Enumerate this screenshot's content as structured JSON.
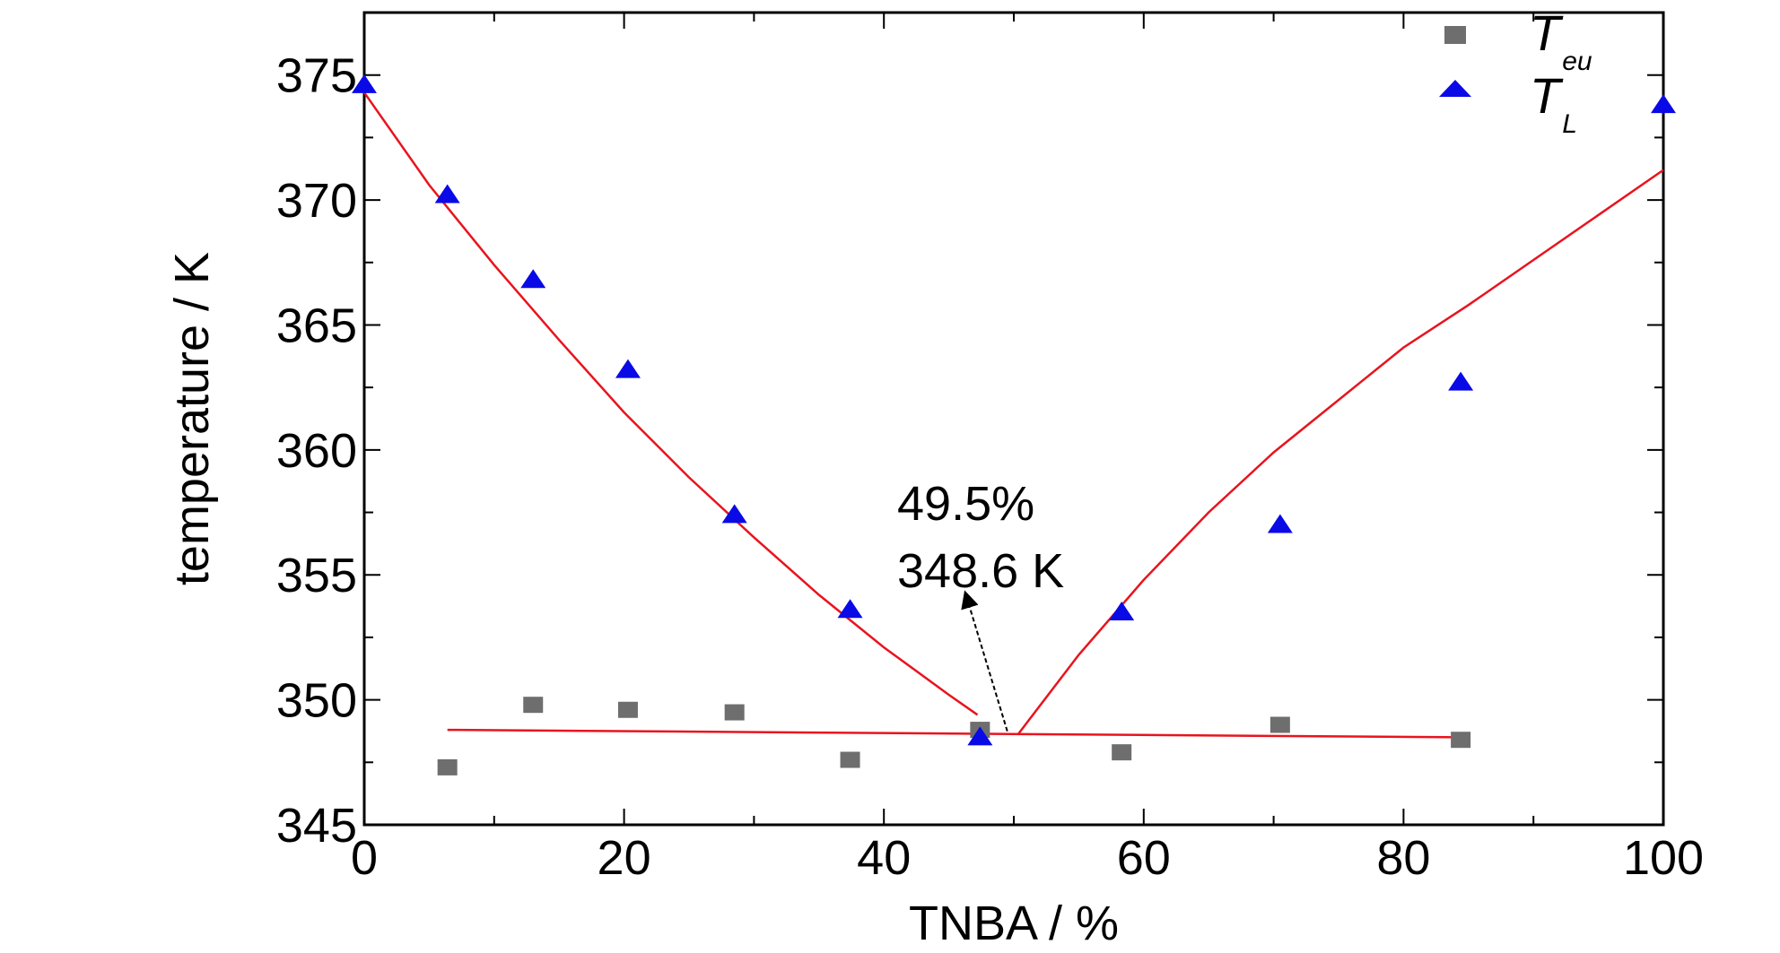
{
  "chart_data": {
    "type": "scatter",
    "xlabel": "TNBA / %",
    "ylabel": "temperature / K",
    "xlim": [
      0,
      100
    ],
    "ylim": [
      345,
      377.5
    ],
    "x_ticks": [
      0,
      20,
      40,
      60,
      80,
      100
    ],
    "y_ticks": [
      345,
      350,
      355,
      360,
      365,
      370,
      375
    ],
    "x_tick_labels": [
      "0",
      "20",
      "40",
      "60",
      "80",
      "100"
    ],
    "y_tick_labels": [
      "345",
      "350",
      "355",
      "360",
      "365",
      "370",
      "375"
    ],
    "grid": false,
    "legend_position": "top-right",
    "series": [
      {
        "name": "T",
        "subscript": "eu",
        "marker": "square",
        "color": "#6e6e6e",
        "points": [
          {
            "x": 6.4,
            "y": 347.3
          },
          {
            "x": 13.0,
            "y": 349.8
          },
          {
            "x": 20.3,
            "y": 349.6
          },
          {
            "x": 28.5,
            "y": 349.5
          },
          {
            "x": 37.4,
            "y": 347.6
          },
          {
            "x": 47.4,
            "y": 348.8
          },
          {
            "x": 58.3,
            "y": 347.9
          },
          {
            "x": 70.5,
            "y": 349.0
          },
          {
            "x": 84.4,
            "y": 348.4
          }
        ]
      },
      {
        "name": "T",
        "subscript": "L",
        "marker": "triangle",
        "color": "#0a0ae6",
        "points": [
          {
            "x": 0.0,
            "y": 374.6
          },
          {
            "x": 6.4,
            "y": 370.2
          },
          {
            "x": 13.0,
            "y": 366.8
          },
          {
            "x": 20.3,
            "y": 363.2
          },
          {
            "x": 28.5,
            "y": 357.4
          },
          {
            "x": 37.4,
            "y": 353.6
          },
          {
            "x": 47.4,
            "y": 348.5
          },
          {
            "x": 58.3,
            "y": 353.5
          },
          {
            "x": 70.5,
            "y": 357.0
          },
          {
            "x": 84.4,
            "y": 362.7
          },
          {
            "x": 100.0,
            "y": 373.8
          }
        ]
      }
    ],
    "fit_curves": {
      "color": "#e8141e",
      "liquidus_left": [
        {
          "x": 0,
          "y": 374.3
        },
        {
          "x": 5,
          "y": 370.6
        },
        {
          "x": 10,
          "y": 367.4
        },
        {
          "x": 15,
          "y": 364.4
        },
        {
          "x": 20,
          "y": 361.5
        },
        {
          "x": 25,
          "y": 358.9
        },
        {
          "x": 30,
          "y": 356.5
        },
        {
          "x": 35,
          "y": 354.2
        },
        {
          "x": 40,
          "y": 352.1
        },
        {
          "x": 45,
          "y": 350.2
        },
        {
          "x": 47.2,
          "y": 349.4
        }
      ],
      "liquidus_right": [
        {
          "x": 50.3,
          "y": 348.6
        },
        {
          "x": 55,
          "y": 351.8
        },
        {
          "x": 60,
          "y": 354.8
        },
        {
          "x": 65,
          "y": 357.5
        },
        {
          "x": 70,
          "y": 359.9
        },
        {
          "x": 75,
          "y": 362.0
        },
        {
          "x": 80,
          "y": 364.1
        },
        {
          "x": 85,
          "y": 365.8
        },
        {
          "x": 90,
          "y": 367.6
        },
        {
          "x": 95,
          "y": 369.4
        },
        {
          "x": 100,
          "y": 371.2
        }
      ],
      "eutectic_line": [
        {
          "x": 6.4,
          "y": 348.8
        },
        {
          "x": 84.4,
          "y": 348.5
        }
      ]
    },
    "annotation": {
      "lines": [
        "49.5%",
        "348.6 K"
      ],
      "target": {
        "x": 49.5,
        "y": 348.6
      }
    }
  }
}
